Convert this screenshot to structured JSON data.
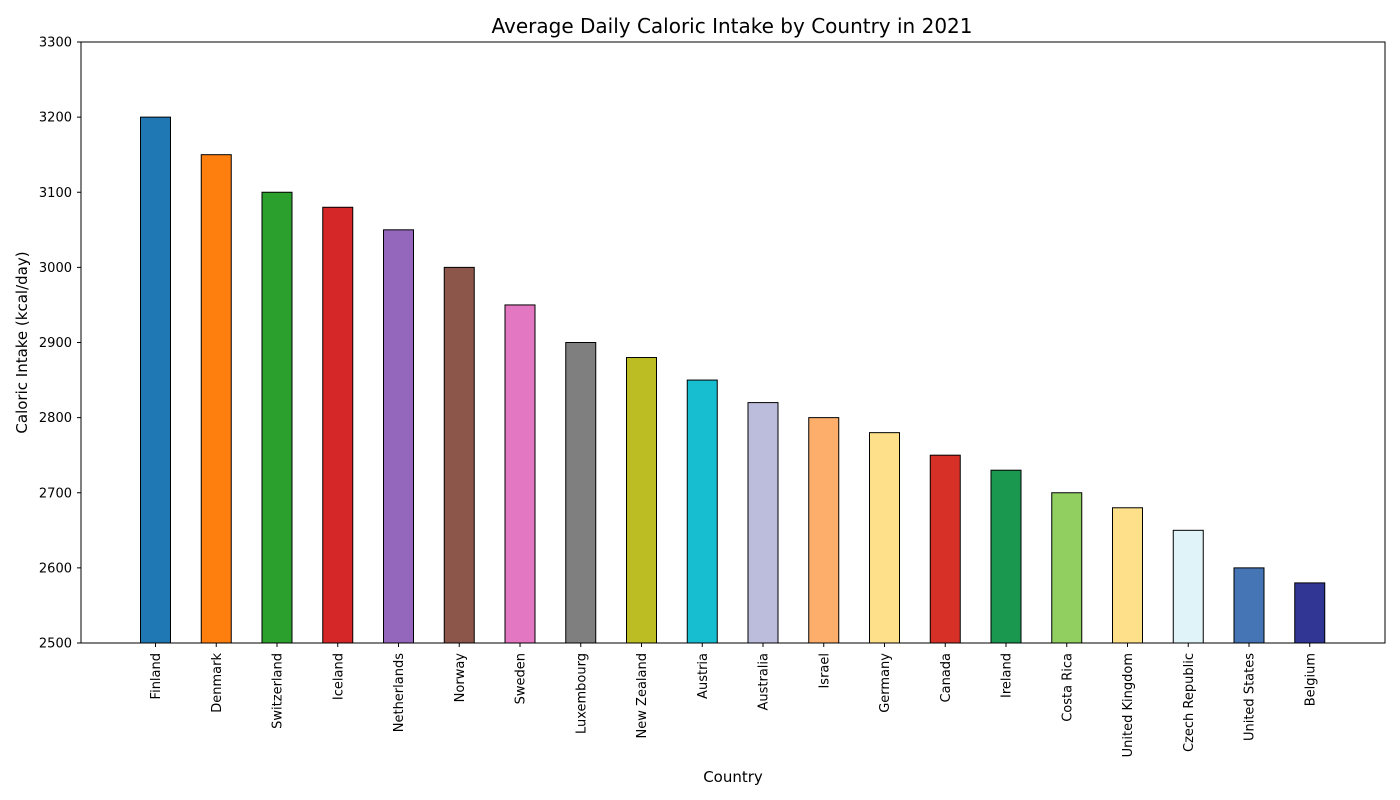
{
  "chart_data": {
    "type": "bar",
    "title": "Average Daily Caloric Intake by Country in 2021",
    "xlabel": "Country",
    "ylabel": "Caloric Intake (kcal/day)",
    "ylim": [
      2500,
      3300
    ],
    "yticks": [
      2500,
      2600,
      2700,
      2800,
      2900,
      3000,
      3100,
      3200,
      3300
    ],
    "grid": false,
    "categories": [
      "Finland",
      "Denmark",
      "Switzerland",
      "Iceland",
      "Netherlands",
      "Norway",
      "Sweden",
      "Luxembourg",
      "New Zealand",
      "Austria",
      "Australia",
      "Israel",
      "Germany",
      "Canada",
      "Ireland",
      "Costa Rica",
      "United Kingdom",
      "Czech Republic",
      "United States",
      "Belgium"
    ],
    "values": [
      3200,
      3150,
      3100,
      3080,
      3050,
      3000,
      2950,
      2900,
      2880,
      2850,
      2820,
      2800,
      2780,
      2750,
      2730,
      2700,
      2680,
      2650,
      2600,
      2580
    ],
    "colors": [
      "#1f77b4",
      "#ff7f0e",
      "#2ca02c",
      "#d62728",
      "#9467bd",
      "#8c564b",
      "#e377c2",
      "#7f7f7f",
      "#bcbd22",
      "#17becf",
      "#bcbddc",
      "#fdae6b",
      "#ffe08a",
      "#d73027",
      "#1a9850",
      "#91cf60",
      "#fee08b",
      "#e0f3f8",
      "#4575b4",
      "#313695"
    ],
    "bar_edge_color": "#000000"
  }
}
